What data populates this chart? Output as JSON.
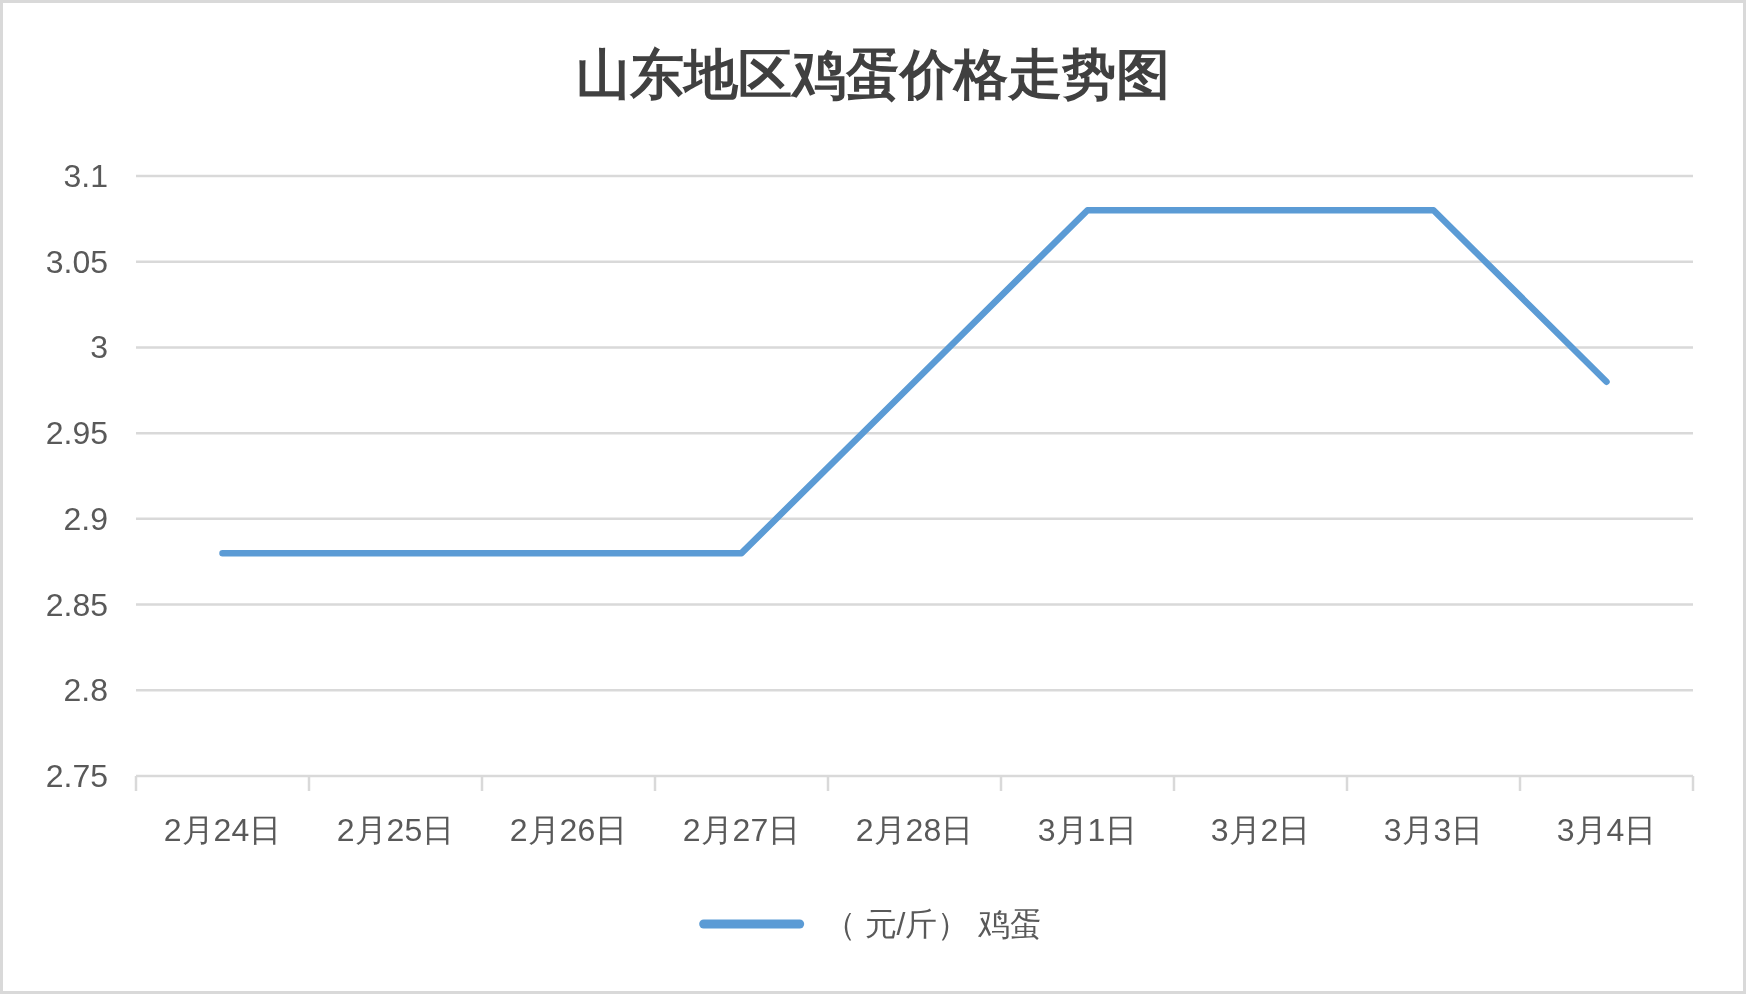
{
  "chart_data": {
    "type": "line",
    "title": "山东地区鸡蛋价格走势图",
    "categories": [
      "2月24日",
      "2月25日",
      "2月26日",
      "2月27日",
      "2月28日",
      "3月1日",
      "3月2日",
      "3月3日",
      "3月4日"
    ],
    "series": [
      {
        "name": "（ 元/斤） 鸡蛋",
        "color": "#5b9bd5",
        "values": [
          2.88,
          2.88,
          2.88,
          2.88,
          2.98,
          3.08,
          3.08,
          3.08,
          2.98
        ]
      }
    ],
    "ylim": [
      2.75,
      3.1
    ],
    "yticks": [
      2.75,
      2.8,
      2.85,
      2.9,
      2.95,
      3,
      3.05,
      3.1
    ],
    "grid": "y",
    "legend": "bottom",
    "line_style": "solid"
  }
}
